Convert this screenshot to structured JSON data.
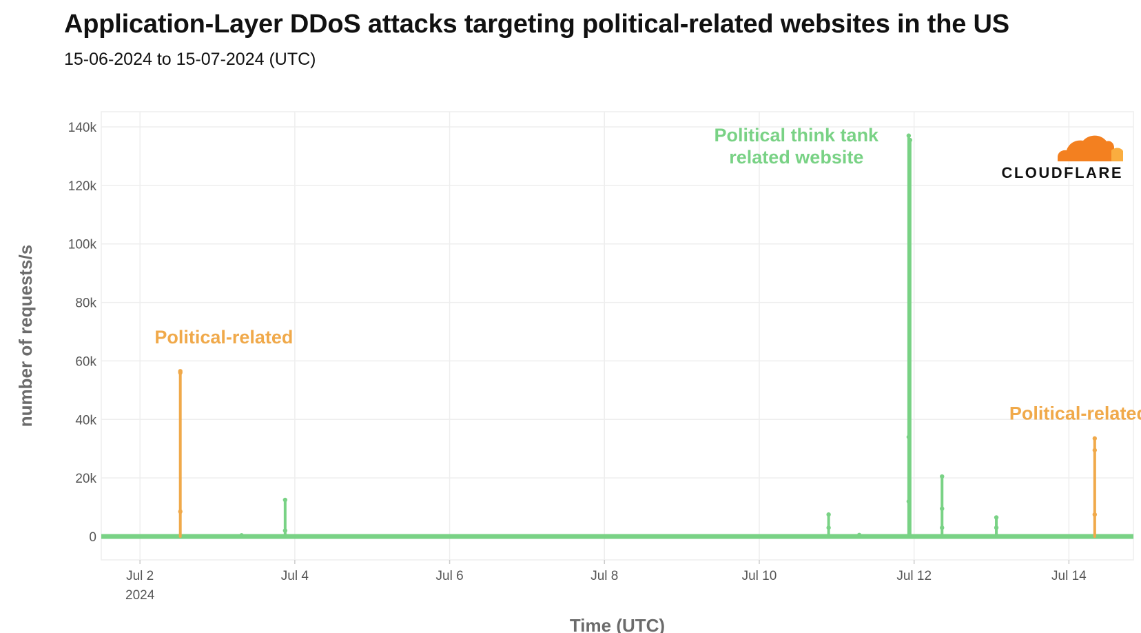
{
  "title": "Application-Layer DDoS attacks targeting political-related websites in the US",
  "subtitle": "15-06-2024 to 15-07-2024 (UTC)",
  "logo": {
    "wordmark": "CLOUDFLARE",
    "cloud_color": "#f38020",
    "cloud_color_light": "#faad3f"
  },
  "colors": {
    "political_related": "#f0a94a",
    "think_tank": "#79d285",
    "grid": "#eeeeee"
  },
  "chart_data": {
    "type": "line",
    "title": "Application-Layer DDoS attacks targeting political-related websites in the US",
    "xlabel": "Time (UTC)",
    "ylabel": "number of requests/s",
    "xlim": [
      "2024-07-01T12:00",
      "2024-07-14T20:00"
    ],
    "ylim": [
      0,
      145000
    ],
    "x_ticks": [
      {
        "value": "2024-07-02T00:00",
        "label": "Jul 2",
        "sublabel": "2024"
      },
      {
        "value": "2024-07-04T00:00",
        "label": "Jul 4"
      },
      {
        "value": "2024-07-06T00:00",
        "label": "Jul 6"
      },
      {
        "value": "2024-07-08T00:00",
        "label": "Jul 8"
      },
      {
        "value": "2024-07-10T00:00",
        "label": "Jul 10"
      },
      {
        "value": "2024-07-12T00:00",
        "label": "Jul 12"
      },
      {
        "value": "2024-07-14T00:00",
        "label": "Jul 14"
      }
    ],
    "y_ticks": [
      {
        "value": 0,
        "label": "0"
      },
      {
        "value": 20000,
        "label": "20k"
      },
      {
        "value": 40000,
        "label": "40k"
      },
      {
        "value": 60000,
        "label": "60k"
      },
      {
        "value": 80000,
        "label": "80k"
      },
      {
        "value": 100000,
        "label": "100k"
      },
      {
        "value": 120000,
        "label": "120k"
      },
      {
        "value": 140000,
        "label": "140k"
      }
    ],
    "grid": true,
    "series": [
      {
        "key": "political_related",
        "color": "#f0a94a",
        "spikes": [
          {
            "x": "2024-07-02T12:30",
            "points": [
              8500,
              56000,
              56500
            ]
          },
          {
            "x": "2024-07-14T08:00",
            "points": [
              7500,
              29500,
              33500
            ]
          }
        ]
      },
      {
        "key": "think_tank",
        "color": "#79d285",
        "spikes": [
          {
            "x": "2024-07-03T07:30",
            "points": [
              400
            ]
          },
          {
            "x": "2024-07-03T21:00",
            "points": [
              2000,
              12500
            ]
          },
          {
            "x": "2024-07-10T21:30",
            "points": [
              3000,
              7500
            ]
          },
          {
            "x": "2024-07-11T07:00",
            "points": [
              500
            ]
          },
          {
            "x": "2024-07-11T22:20",
            "points": [
              12000,
              34000,
              137000
            ]
          },
          {
            "x": "2024-07-11T22:45",
            "points": [
              135500
            ]
          },
          {
            "x": "2024-07-12T08:40",
            "points": [
              3000,
              9500,
              20500
            ]
          },
          {
            "x": "2024-07-13T01:30",
            "points": [
              3000,
              6500
            ]
          }
        ]
      }
    ],
    "annotations": [
      {
        "text": "Political-related",
        "color": "#f0a94a",
        "x": "2024-07-03T02:00",
        "y": 66000,
        "anchor": "middle"
      },
      {
        "text": "Political think tank",
        "color": "#79d285",
        "x": "2024-07-10T11:30",
        "y": 135000,
        "anchor": "middle"
      },
      {
        "text": "related website",
        "color": "#79d285",
        "x": "2024-07-10T11:30",
        "y": 127500,
        "anchor": "middle"
      },
      {
        "text": "Political-related",
        "color": "#f0a94a",
        "x": "2024-07-14T03:00",
        "y": 40000,
        "anchor": "middle"
      }
    ]
  }
}
